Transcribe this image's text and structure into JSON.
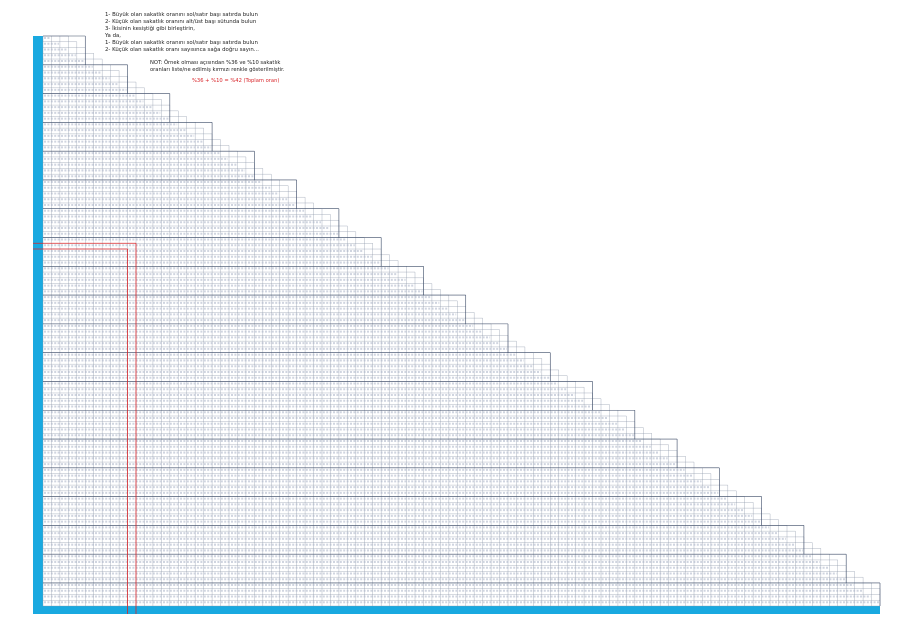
{
  "instructions": [
    "1- Büyük olan sakatlık oranını sol/satır başı satırda bulun",
    "2- Küçük olan sakatlık oranını alt/üst başı sütunda bulun",
    "3- İkisinin kesiştiği gibi birleştirin,",
    "Ya da,",
    "1- Büyük olan sakatlık oranını sol/satır başı satırda bulun",
    "2- Küçük olan sakatlık oranı sayısınca sağa doğru sayın..."
  ],
  "note": {
    "lines": [
      "NOT: Örnek olması açısından %36 ve %10 sakatlık",
      "oranları liste/ne edilmiş kırmızı renkle gösterilmiştir."
    ]
  },
  "formula": "%36 + %10 = %42 (Toplam oran)",
  "colors": {
    "header_cyan": "#19a9e0",
    "grid_line": "#8b95a8",
    "highlight_red": "#d9252a",
    "text": "#222222"
  },
  "table": {
    "rows": 99,
    "highlight_row": 36,
    "highlight_col": 10
  }
}
